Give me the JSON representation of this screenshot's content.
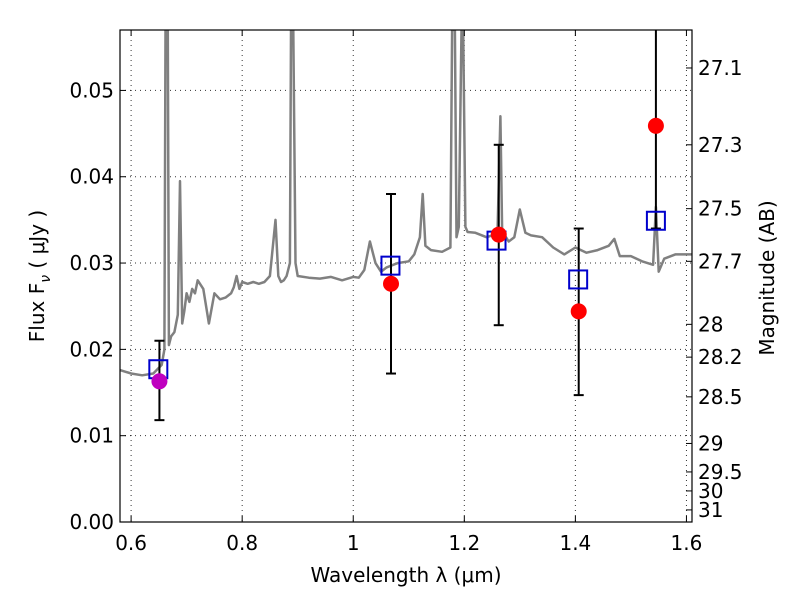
{
  "chart_data": {
    "type": "scatter",
    "xlabel": "Wavelength  λ (μm)",
    "ylabel": "Flux  F",
    "ylabel_sub": "ν",
    "ylabel_unit": "  (  μJy  )",
    "ylabel_right": "Magnitude (AB)",
    "xlim": [
      0.58,
      1.61
    ],
    "ylim": [
      0.0,
      0.057
    ],
    "grid": true,
    "x_ticks": [
      {
        "value": 0.6,
        "label": "0.6"
      },
      {
        "value": 0.8,
        "label": "0.8"
      },
      {
        "value": 1.0,
        "label": "1"
      },
      {
        "value": 1.2,
        "label": "1.2"
      },
      {
        "value": 1.4,
        "label": "1.4"
      },
      {
        "value": 1.6,
        "label": "1.6"
      }
    ],
    "y_ticks": [
      {
        "value": 0.0,
        "label": "0.00"
      },
      {
        "value": 0.01,
        "label": "0.01"
      },
      {
        "value": 0.02,
        "label": "0.02"
      },
      {
        "value": 0.03,
        "label": "0.03"
      },
      {
        "value": 0.04,
        "label": "0.04"
      },
      {
        "value": 0.05,
        "label": "0.05"
      }
    ],
    "y_right_ticks": [
      {
        "label": "27.1",
        "flux": 0.0526
      },
      {
        "label": "27.3",
        "flux": 0.0437
      },
      {
        "label": "27.5",
        "flux": 0.0363
      },
      {
        "label": "27.7",
        "flux": 0.0302
      },
      {
        "label": "28",
        "flux": 0.0229
      },
      {
        "label": "28.2",
        "flux": 0.0191
      },
      {
        "label": "28.5",
        "flux": 0.0145
      },
      {
        "label": "29",
        "flux": 0.0091
      },
      {
        "label": "29.5",
        "flux": 0.0058
      },
      {
        "label": "30",
        "flux": 0.0036
      },
      {
        "label": "31",
        "flux": 0.0014
      }
    ],
    "colors": {
      "model": "#808080",
      "observed": "#ff0000",
      "observed_first": "#bf00bf",
      "model_box": "#0000cc",
      "errorbar": "#000000"
    },
    "series": [
      {
        "kind": "line",
        "x": [
          0.58,
          0.6,
          0.62,
          0.64,
          0.655,
          0.66,
          0.662,
          0.664,
          0.666,
          0.668,
          0.672,
          0.678,
          0.684,
          0.688,
          0.692,
          0.696,
          0.7,
          0.705,
          0.71,
          0.715,
          0.72,
          0.73,
          0.74,
          0.75,
          0.76,
          0.77,
          0.78,
          0.785,
          0.79,
          0.795,
          0.8,
          0.81,
          0.82,
          0.83,
          0.84,
          0.85,
          0.86,
          0.865,
          0.87,
          0.875,
          0.88,
          0.886,
          0.888,
          0.892,
          0.896,
          0.9,
          0.92,
          0.94,
          0.96,
          0.98,
          1.0,
          1.01,
          1.02,
          1.03,
          1.04,
          1.05,
          1.06,
          1.08,
          1.1,
          1.11,
          1.12,
          1.125,
          1.13,
          1.14,
          1.16,
          1.175,
          1.178,
          1.183,
          1.186,
          1.19,
          1.195,
          1.198,
          1.202,
          1.206,
          1.22,
          1.24,
          1.25,
          1.26,
          1.265,
          1.268,
          1.272,
          1.28,
          1.29,
          1.3,
          1.31,
          1.32,
          1.34,
          1.36,
          1.38,
          1.4,
          1.42,
          1.44,
          1.46,
          1.47,
          1.48,
          1.5,
          1.52,
          1.54,
          1.545,
          1.55,
          1.56,
          1.58,
          1.61
        ],
        "y": [
          0.0176,
          0.0172,
          0.017,
          0.0172,
          0.0182,
          0.02,
          0.057,
          0.057,
          0.057,
          0.0205,
          0.0215,
          0.022,
          0.024,
          0.0395,
          0.023,
          0.0245,
          0.0265,
          0.0255,
          0.027,
          0.0265,
          0.028,
          0.027,
          0.023,
          0.0265,
          0.0258,
          0.026,
          0.0265,
          0.0272,
          0.0285,
          0.027,
          0.0278,
          0.0276,
          0.0278,
          0.0276,
          0.0278,
          0.0285,
          0.035,
          0.0285,
          0.0278,
          0.028,
          0.0285,
          0.03,
          0.057,
          0.057,
          0.03,
          0.0285,
          0.0283,
          0.0282,
          0.0284,
          0.028,
          0.0284,
          0.0283,
          0.0292,
          0.0325,
          0.03,
          0.029,
          0.0295,
          0.03,
          0.0302,
          0.031,
          0.033,
          0.038,
          0.032,
          0.0315,
          0.0313,
          0.0318,
          0.057,
          0.057,
          0.033,
          0.0342,
          0.057,
          0.057,
          0.0342,
          0.0336,
          0.0335,
          0.033,
          0.0332,
          0.034,
          0.047,
          0.034,
          0.0333,
          0.0325,
          0.033,
          0.0362,
          0.0335,
          0.0332,
          0.033,
          0.0318,
          0.031,
          0.0318,
          0.0312,
          0.0315,
          0.032,
          0.0328,
          0.0308,
          0.0308,
          0.0302,
          0.0298,
          0.0365,
          0.029,
          0.0305,
          0.031,
          0.031
        ]
      },
      {
        "kind": "points",
        "name": "",
        "x": [
          0.651,
          1.068,
          1.262,
          1.406,
          1.545
        ],
        "y": [
          0.0163,
          0.0276,
          0.0333,
          0.0244,
          0.0459
        ],
        "yerr_low": [
          0.0045,
          0.0104,
          0.0105,
          0.0097,
          0.0119
        ],
        "yerr_high": [
          0.0047,
          0.0104,
          0.0104,
          0.0096,
          0.012
        ]
      },
      {
        "kind": "squares",
        "name": "",
        "x": [
          0.649,
          1.067,
          1.258,
          1.405,
          1.545
        ],
        "y": [
          0.0177,
          0.0297,
          0.0326,
          0.0281,
          0.0349
        ]
      }
    ]
  }
}
